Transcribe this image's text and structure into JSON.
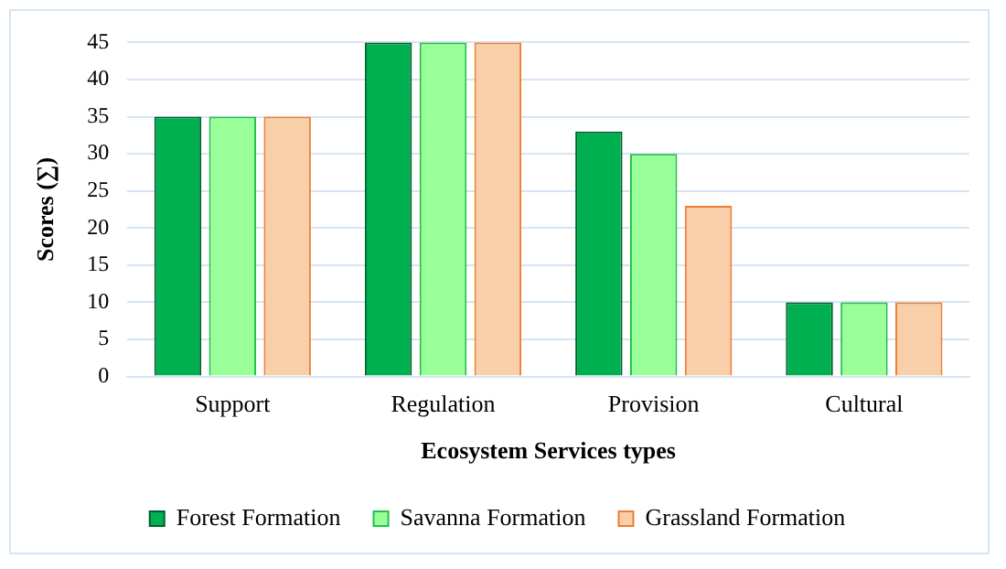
{
  "chart_data": {
    "type": "bar",
    "xlabel": "Ecosystem Services types",
    "ylabel": "Scores (∑)",
    "categories": [
      "Support",
      "Regulation",
      "Provision",
      "Cultural"
    ],
    "series": [
      {
        "name": "Forest Formation",
        "color": "#00b050",
        "values": [
          35,
          45,
          33,
          10
        ]
      },
      {
        "name": "Savanna Formation",
        "color": "#99ff99",
        "values": [
          35,
          45,
          30,
          10
        ]
      },
      {
        "name": "Grassland Formation",
        "color": "#f8cfa8",
        "values": [
          35,
          45,
          23,
          10
        ]
      }
    ],
    "ylim": [
      0,
      45
    ],
    "yticks": [
      0,
      5,
      10,
      15,
      20,
      25,
      30,
      35,
      40,
      45
    ],
    "grid": "y",
    "legend": "bottom"
  }
}
